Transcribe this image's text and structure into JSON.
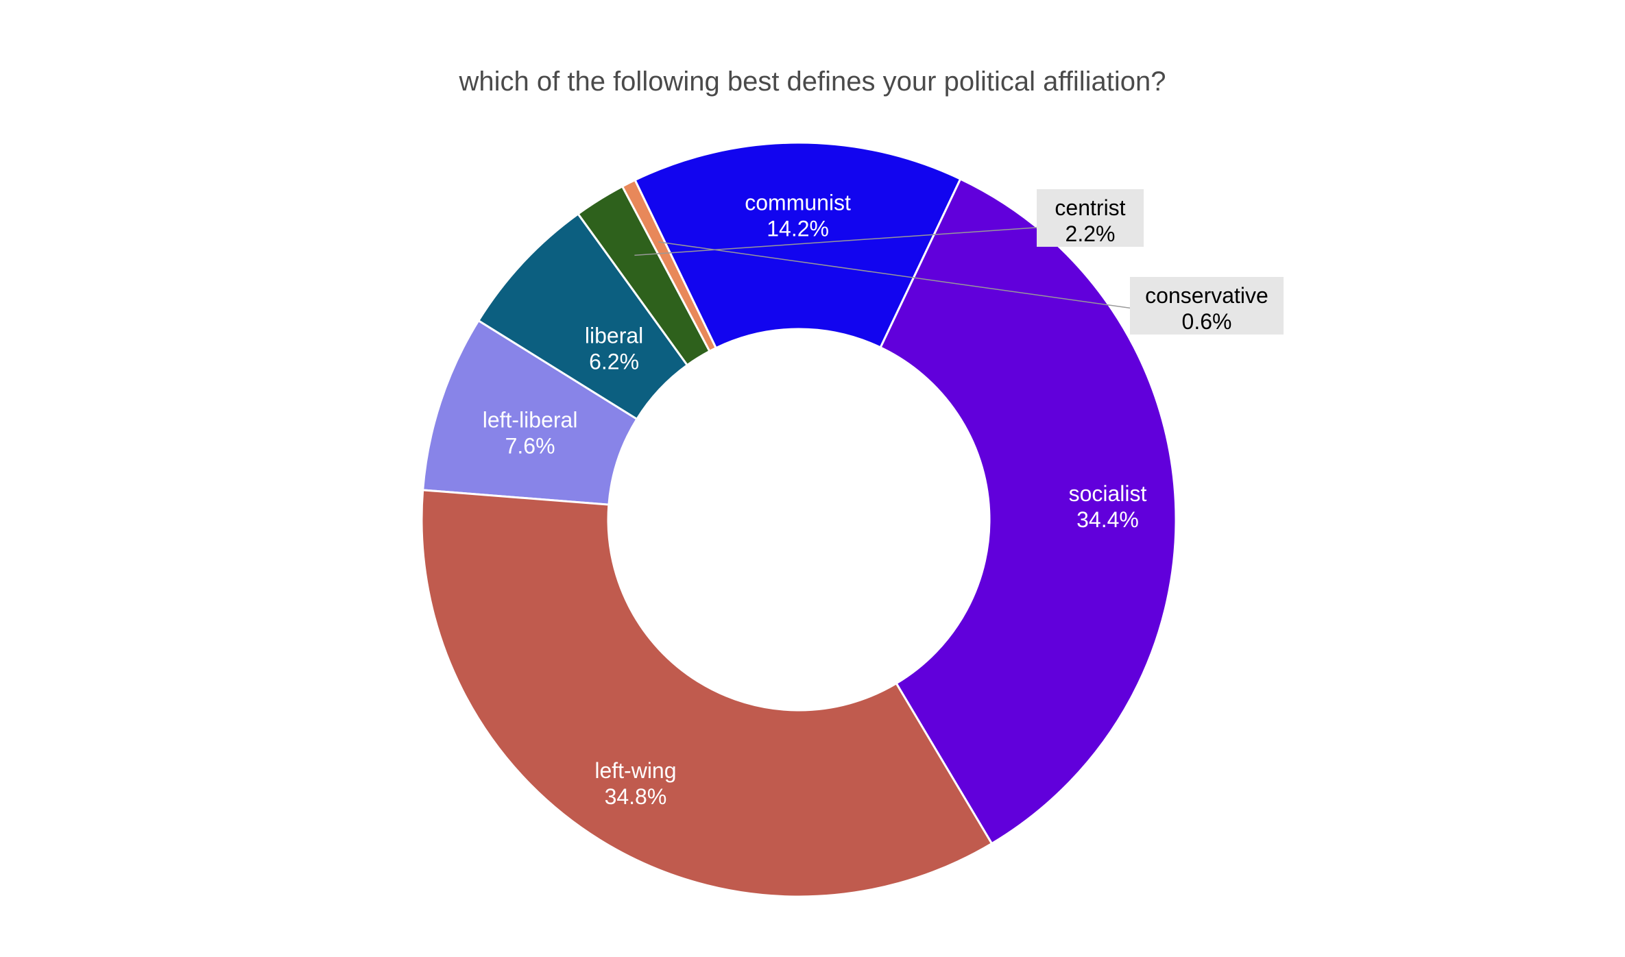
{
  "chart_data": {
    "type": "pie",
    "donut": true,
    "title": "which of the following best defines your political affiliation?",
    "slices": [
      {
        "label": "left-liberal",
        "value": 7.6,
        "value_text": "7.6%",
        "color": "#8884e8",
        "text_color": "#ffffff"
      },
      {
        "label": "liberal",
        "value": 6.2,
        "value_text": "6.2%",
        "color": "#0c5f80",
        "text_color": "#ffffff"
      },
      {
        "label": "centrist",
        "value": 2.2,
        "value_text": "2.2%",
        "color": "#2e611c",
        "text_color": "#000000"
      },
      {
        "label": "conservative",
        "value": 0.6,
        "value_text": "0.6%",
        "color": "#e8885a",
        "text_color": "#000000"
      },
      {
        "label": "communist",
        "value": 14.2,
        "value_text": "14.2%",
        "color": "#1205ef",
        "text_color": "#ffffff"
      },
      {
        "label": "socialist",
        "value": 34.4,
        "value_text": "34.4%",
        "color": "#6100db",
        "text_color": "#ffffff"
      },
      {
        "label": "left-wing",
        "value": 34.8,
        "value_text": "34.8%",
        "color": "#c05b4e",
        "text_color": "#ffffff"
      }
    ],
    "legend": "none"
  }
}
